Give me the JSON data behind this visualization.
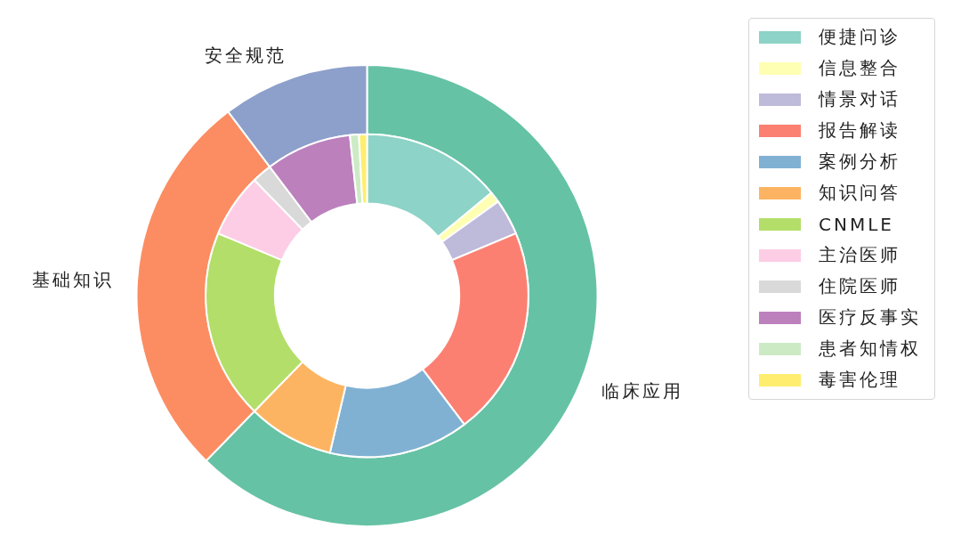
{
  "chart_data": [
    {
      "type": "donut",
      "categories": [
        "临床应用",
        "基础知识",
        "安全规范"
      ],
      "values": [
        62.3,
        27.4,
        10.3
      ],
      "colors": [
        "#66c2a5",
        "#fc8d62",
        "#8da0cb"
      ]
    },
    {
      "type": "donut",
      "categories": [
        "便捷问诊",
        "信息整合",
        "情景对话",
        "报告解读",
        "案例分析",
        "知识问答",
        "CNMLE",
        "主治医师",
        "住院医师",
        "医疗反事实",
        "患者知情权",
        "毒害伦理"
      ],
      "values": [
        14.0,
        1.1,
        3.6,
        21.0,
        14.0,
        8.6,
        19.0,
        6.4,
        2.0,
        8.6,
        0.9,
        0.8
      ],
      "colors": [
        "#8dd3c7",
        "#ffffb3",
        "#bebada",
        "#fb8072",
        "#80b1d3",
        "#fdb462",
        "#b3de69",
        "#fccde5",
        "#d9d9d9",
        "#bc80bd",
        "#ccebc5",
        "#ffed6f"
      ],
      "legend": "top right"
    }
  ]
}
